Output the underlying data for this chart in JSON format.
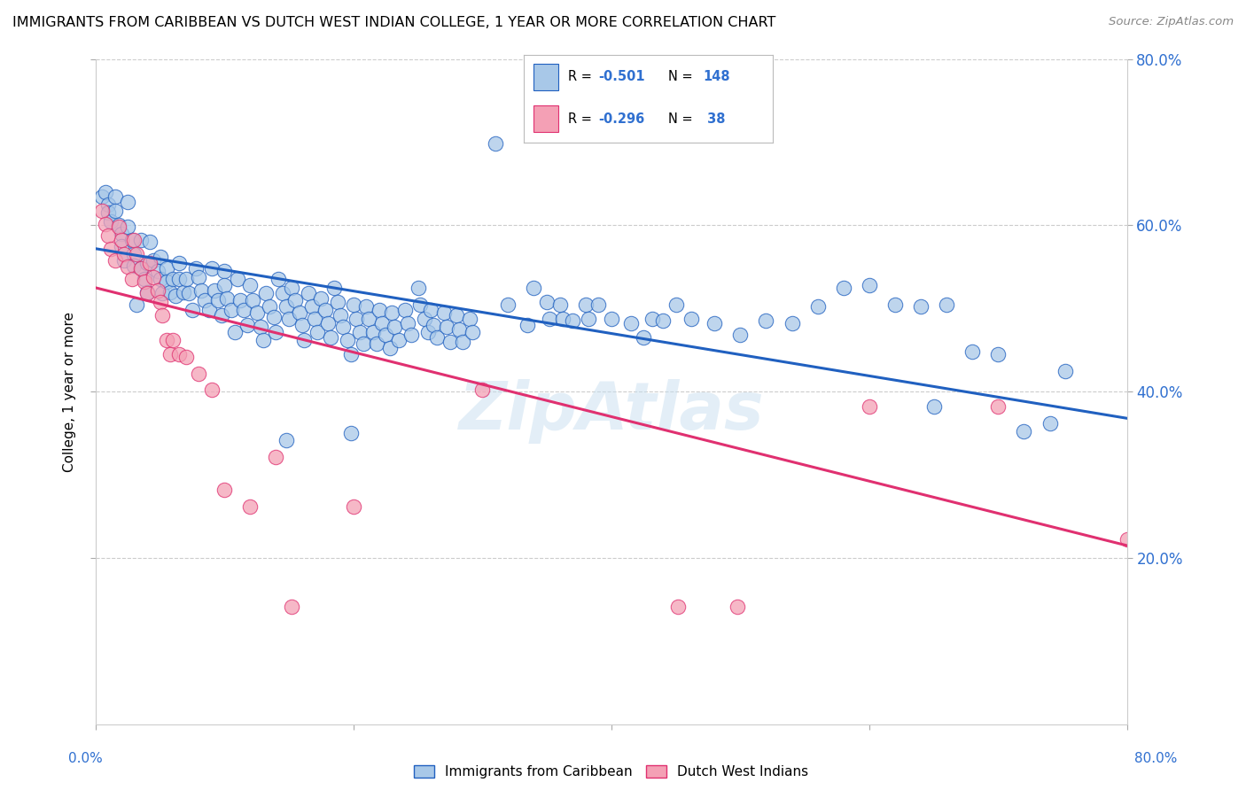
{
  "title": "IMMIGRANTS FROM CARIBBEAN VS DUTCH WEST INDIAN COLLEGE, 1 YEAR OR MORE CORRELATION CHART",
  "source": "Source: ZipAtlas.com",
  "ylabel": "College, 1 year or more",
  "xlim": [
    0.0,
    0.8
  ],
  "ylim": [
    0.0,
    0.8
  ],
  "yticks": [
    0.2,
    0.4,
    0.6,
    0.8
  ],
  "legend_r1": "-0.501",
  "legend_n1": "148",
  "legend_r2": "-0.296",
  "legend_n2": " 38",
  "blue_color": "#a8c8e8",
  "pink_color": "#f4a0b5",
  "line_blue": "#2060c0",
  "line_pink": "#e03070",
  "tick_color": "#3070d0",
  "watermark": "ZipAtlas",
  "blue_scatter": [
    [
      0.005,
      0.635
    ],
    [
      0.008,
      0.64
    ],
    [
      0.01,
      0.625
    ],
    [
      0.01,
      0.615
    ],
    [
      0.012,
      0.605
    ],
    [
      0.015,
      0.635
    ],
    [
      0.015,
      0.618
    ],
    [
      0.018,
      0.6
    ],
    [
      0.02,
      0.59
    ],
    [
      0.02,
      0.575
    ],
    [
      0.022,
      0.558
    ],
    [
      0.025,
      0.628
    ],
    [
      0.025,
      0.598
    ],
    [
      0.028,
      0.582
    ],
    [
      0.03,
      0.565
    ],
    [
      0.03,
      0.552
    ],
    [
      0.032,
      0.505
    ],
    [
      0.035,
      0.582
    ],
    [
      0.035,
      0.548
    ],
    [
      0.038,
      0.535
    ],
    [
      0.04,
      0.555
    ],
    [
      0.04,
      0.52
    ],
    [
      0.042,
      0.58
    ],
    [
      0.045,
      0.558
    ],
    [
      0.048,
      0.545
    ],
    [
      0.05,
      0.562
    ],
    [
      0.05,
      0.535
    ],
    [
      0.052,
      0.518
    ],
    [
      0.055,
      0.548
    ],
    [
      0.055,
      0.532
    ],
    [
      0.058,
      0.52
    ],
    [
      0.06,
      0.535
    ],
    [
      0.062,
      0.515
    ],
    [
      0.065,
      0.555
    ],
    [
      0.065,
      0.535
    ],
    [
      0.068,
      0.52
    ],
    [
      0.07,
      0.535
    ],
    [
      0.072,
      0.518
    ],
    [
      0.075,
      0.498
    ],
    [
      0.078,
      0.548
    ],
    [
      0.08,
      0.538
    ],
    [
      0.082,
      0.522
    ],
    [
      0.085,
      0.51
    ],
    [
      0.088,
      0.498
    ],
    [
      0.09,
      0.548
    ],
    [
      0.092,
      0.522
    ],
    [
      0.095,
      0.51
    ],
    [
      0.098,
      0.492
    ],
    [
      0.1,
      0.545
    ],
    [
      0.1,
      0.528
    ],
    [
      0.102,
      0.512
    ],
    [
      0.105,
      0.498
    ],
    [
      0.108,
      0.472
    ],
    [
      0.11,
      0.535
    ],
    [
      0.112,
      0.51
    ],
    [
      0.115,
      0.498
    ],
    [
      0.118,
      0.48
    ],
    [
      0.12,
      0.528
    ],
    [
      0.122,
      0.51
    ],
    [
      0.125,
      0.495
    ],
    [
      0.128,
      0.478
    ],
    [
      0.13,
      0.462
    ],
    [
      0.132,
      0.518
    ],
    [
      0.135,
      0.502
    ],
    [
      0.138,
      0.49
    ],
    [
      0.14,
      0.472
    ],
    [
      0.142,
      0.535
    ],
    [
      0.145,
      0.518
    ],
    [
      0.148,
      0.502
    ],
    [
      0.15,
      0.488
    ],
    [
      0.152,
      0.525
    ],
    [
      0.155,
      0.51
    ],
    [
      0.158,
      0.495
    ],
    [
      0.16,
      0.48
    ],
    [
      0.162,
      0.462
    ],
    [
      0.165,
      0.518
    ],
    [
      0.168,
      0.502
    ],
    [
      0.17,
      0.488
    ],
    [
      0.172,
      0.472
    ],
    [
      0.175,
      0.512
    ],
    [
      0.178,
      0.498
    ],
    [
      0.18,
      0.482
    ],
    [
      0.182,
      0.465
    ],
    [
      0.185,
      0.525
    ],
    [
      0.188,
      0.508
    ],
    [
      0.19,
      0.492
    ],
    [
      0.192,
      0.478
    ],
    [
      0.195,
      0.462
    ],
    [
      0.198,
      0.445
    ],
    [
      0.2,
      0.505
    ],
    [
      0.202,
      0.488
    ],
    [
      0.205,
      0.472
    ],
    [
      0.208,
      0.458
    ],
    [
      0.21,
      0.502
    ],
    [
      0.212,
      0.488
    ],
    [
      0.215,
      0.472
    ],
    [
      0.218,
      0.458
    ],
    [
      0.22,
      0.498
    ],
    [
      0.222,
      0.482
    ],
    [
      0.225,
      0.468
    ],
    [
      0.228,
      0.452
    ],
    [
      0.23,
      0.495
    ],
    [
      0.232,
      0.478
    ],
    [
      0.235,
      0.462
    ],
    [
      0.24,
      0.498
    ],
    [
      0.242,
      0.482
    ],
    [
      0.245,
      0.468
    ],
    [
      0.25,
      0.525
    ],
    [
      0.252,
      0.505
    ],
    [
      0.255,
      0.488
    ],
    [
      0.258,
      0.472
    ],
    [
      0.26,
      0.498
    ],
    [
      0.262,
      0.48
    ],
    [
      0.265,
      0.465
    ],
    [
      0.27,
      0.495
    ],
    [
      0.272,
      0.478
    ],
    [
      0.275,
      0.46
    ],
    [
      0.28,
      0.492
    ],
    [
      0.282,
      0.475
    ],
    [
      0.285,
      0.46
    ],
    [
      0.29,
      0.488
    ],
    [
      0.292,
      0.472
    ],
    [
      0.31,
      0.698
    ],
    [
      0.32,
      0.505
    ],
    [
      0.335,
      0.48
    ],
    [
      0.34,
      0.525
    ],
    [
      0.35,
      0.508
    ],
    [
      0.352,
      0.488
    ],
    [
      0.36,
      0.505
    ],
    [
      0.362,
      0.488
    ],
    [
      0.37,
      0.485
    ],
    [
      0.38,
      0.505
    ],
    [
      0.382,
      0.488
    ],
    [
      0.39,
      0.505
    ],
    [
      0.4,
      0.488
    ],
    [
      0.415,
      0.482
    ],
    [
      0.425,
      0.465
    ],
    [
      0.432,
      0.488
    ],
    [
      0.44,
      0.485
    ],
    [
      0.45,
      0.505
    ],
    [
      0.462,
      0.488
    ],
    [
      0.48,
      0.482
    ],
    [
      0.5,
      0.468
    ],
    [
      0.52,
      0.485
    ],
    [
      0.54,
      0.482
    ],
    [
      0.56,
      0.502
    ],
    [
      0.58,
      0.525
    ],
    [
      0.6,
      0.528
    ],
    [
      0.62,
      0.505
    ],
    [
      0.64,
      0.502
    ],
    [
      0.65,
      0.382
    ],
    [
      0.66,
      0.505
    ],
    [
      0.68,
      0.448
    ],
    [
      0.7,
      0.445
    ],
    [
      0.72,
      0.352
    ],
    [
      0.74,
      0.362
    ],
    [
      0.752,
      0.425
    ],
    [
      0.198,
      0.35
    ],
    [
      0.148,
      0.342
    ]
  ],
  "pink_scatter": [
    [
      0.005,
      0.618
    ],
    [
      0.008,
      0.602
    ],
    [
      0.01,
      0.588
    ],
    [
      0.012,
      0.572
    ],
    [
      0.015,
      0.558
    ],
    [
      0.018,
      0.598
    ],
    [
      0.02,
      0.582
    ],
    [
      0.022,
      0.565
    ],
    [
      0.025,
      0.55
    ],
    [
      0.028,
      0.535
    ],
    [
      0.03,
      0.582
    ],
    [
      0.032,
      0.565
    ],
    [
      0.035,
      0.548
    ],
    [
      0.038,
      0.532
    ],
    [
      0.04,
      0.518
    ],
    [
      0.042,
      0.555
    ],
    [
      0.045,
      0.538
    ],
    [
      0.048,
      0.522
    ],
    [
      0.05,
      0.508
    ],
    [
      0.052,
      0.492
    ],
    [
      0.055,
      0.462
    ],
    [
      0.058,
      0.445
    ],
    [
      0.06,
      0.462
    ],
    [
      0.065,
      0.445
    ],
    [
      0.07,
      0.442
    ],
    [
      0.08,
      0.422
    ],
    [
      0.09,
      0.402
    ],
    [
      0.1,
      0.282
    ],
    [
      0.12,
      0.262
    ],
    [
      0.14,
      0.322
    ],
    [
      0.152,
      0.142
    ],
    [
      0.2,
      0.262
    ],
    [
      0.3,
      0.402
    ],
    [
      0.452,
      0.142
    ],
    [
      0.498,
      0.142
    ],
    [
      0.6,
      0.382
    ],
    [
      0.7,
      0.382
    ],
    [
      0.8,
      0.222
    ]
  ],
  "blue_line": [
    [
      0.0,
      0.572
    ],
    [
      0.8,
      0.368
    ]
  ],
  "pink_line": [
    [
      0.0,
      0.525
    ],
    [
      0.8,
      0.215
    ]
  ]
}
